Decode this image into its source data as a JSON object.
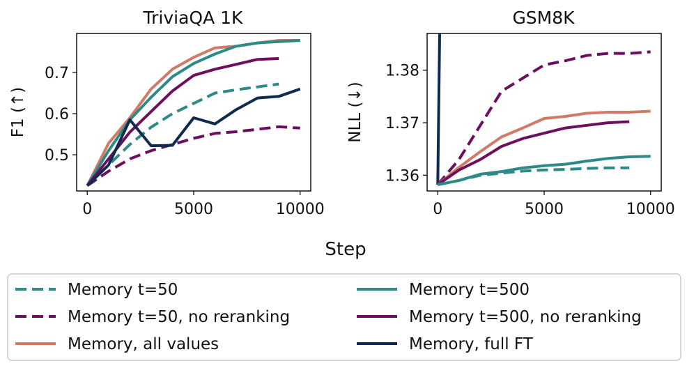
{
  "figure": {
    "xlabel": "Step"
  },
  "legend": {
    "placement": "bottom",
    "columns": 2,
    "entries": [
      {
        "label": "Memory t=50",
        "color": "#2e8a86",
        "dash": "dashed"
      },
      {
        "label": "Memory t=500",
        "color": "#2e8a86",
        "dash": "solid"
      },
      {
        "label": "Memory t=50, no reranking",
        "color": "#6b0f5e",
        "dash": "dashed"
      },
      {
        "label": "Memory t=500, no reranking",
        "color": "#6b0f5e",
        "dash": "solid"
      },
      {
        "label": "Memory, all values",
        "color": "#d17a68",
        "dash": "solid"
      },
      {
        "label": "Memory, full FT",
        "color": "#0e2a4f",
        "dash": "solid"
      }
    ]
  },
  "chart_data": [
    {
      "type": "line",
      "title": "TriviaQA 1K",
      "xlabel": "",
      "ylabel": "F1 (↑)",
      "xlim": [
        -500,
        10500
      ],
      "ylim": [
        0.412,
        0.795
      ],
      "xticks": [
        0,
        5000,
        10000
      ],
      "xtick_labels": [
        "0",
        "5000",
        "10000"
      ],
      "yticks": [
        0.5,
        0.6,
        0.7
      ],
      "ytick_labels": [
        "0.5",
        "0.6",
        "0.7"
      ],
      "grid": false,
      "series": [
        {
          "name": "Memory t=50",
          "color": "#2e8a86",
          "dash": "dashed",
          "x": [
            0,
            1000,
            2000,
            3000,
            4000,
            5000,
            6000,
            7000,
            8000,
            9000
          ],
          "y": [
            0.425,
            0.475,
            0.525,
            0.567,
            0.6,
            0.625,
            0.65,
            0.658,
            0.665,
            0.672
          ]
        },
        {
          "name": "Memory t=50, no reranking",
          "color": "#6b0f5e",
          "dash": "dashed",
          "x": [
            0,
            1000,
            2000,
            3000,
            4000,
            5000,
            6000,
            7000,
            8000,
            9000,
            10000
          ],
          "y": [
            0.425,
            0.46,
            0.49,
            0.51,
            0.525,
            0.54,
            0.552,
            0.556,
            0.562,
            0.568,
            0.565
          ]
        },
        {
          "name": "Memory, all values",
          "color": "#d17a68",
          "dash": "solid",
          "x": [
            0,
            1000,
            2000,
            3000,
            4000,
            5000,
            6000,
            7000,
            8000,
            9000,
            10000
          ],
          "y": [
            0.425,
            0.528,
            0.59,
            0.66,
            0.708,
            0.737,
            0.76,
            0.764,
            0.772,
            0.778,
            0.778
          ]
        },
        {
          "name": "Memory t=500",
          "color": "#2e8a86",
          "dash": "solid",
          "x": [
            0,
            1000,
            2000,
            3000,
            4000,
            5000,
            6000,
            7000,
            8000,
            9000,
            10000
          ],
          "y": [
            0.425,
            0.51,
            0.585,
            0.64,
            0.69,
            0.722,
            0.745,
            0.764,
            0.772,
            0.775,
            0.778
          ]
        },
        {
          "name": "Memory t=500, no reranking",
          "color": "#6b0f5e",
          "dash": "solid",
          "x": [
            0,
            1000,
            2000,
            3000,
            4000,
            5000,
            6000,
            7000,
            8000,
            9000
          ],
          "y": [
            0.425,
            0.49,
            0.555,
            0.605,
            0.655,
            0.693,
            0.708,
            0.72,
            0.732,
            0.734
          ]
        },
        {
          "name": "Memory, full FT",
          "color": "#0e2a4f",
          "dash": "solid",
          "x": [
            0,
            1000,
            2000,
            3000,
            4000,
            5000,
            6000,
            7000,
            8000,
            9000,
            10000
          ],
          "y": [
            0.425,
            0.475,
            0.585,
            0.522,
            0.523,
            0.59,
            0.575,
            0.61,
            0.638,
            0.642,
            0.66
          ]
        }
      ]
    },
    {
      "type": "line",
      "title": "GSM8K",
      "xlabel": "",
      "ylabel": "NLL (↓)",
      "xlim": [
        -500,
        10500
      ],
      "ylim": [
        1.357,
        1.387
      ],
      "xticks": [
        0,
        5000,
        10000
      ],
      "xtick_labels": [
        "0",
        "5000",
        "10000"
      ],
      "yticks": [
        1.36,
        1.37,
        1.38
      ],
      "ytick_labels": [
        "1.36",
        "1.37",
        "1.38"
      ],
      "grid": false,
      "series": [
        {
          "name": "Memory, full FT",
          "color": "#0e2a4f",
          "dash": "solid",
          "x": [
            0,
            100
          ],
          "y": [
            1.3582,
            1.39
          ]
        },
        {
          "name": "Memory t=50, no reranking",
          "color": "#6b0f5e",
          "dash": "dashed",
          "x": [
            0,
            1000,
            2000,
            3000,
            4000,
            5000,
            6000,
            7000,
            8000,
            9000,
            10000
          ],
          "y": [
            1.3582,
            1.363,
            1.3695,
            1.376,
            1.3785,
            1.381,
            1.3818,
            1.3828,
            1.3832,
            1.3832,
            1.3835
          ]
        },
        {
          "name": "Memory, all values",
          "color": "#d17a68",
          "dash": "solid",
          "x": [
            0,
            1000,
            2000,
            3000,
            4000,
            5000,
            6000,
            7000,
            8000,
            9000,
            10000
          ],
          "y": [
            1.3582,
            1.3615,
            1.3645,
            1.3673,
            1.369,
            1.3708,
            1.3712,
            1.3718,
            1.372,
            1.372,
            1.3722
          ]
        },
        {
          "name": "Memory t=500, no reranking",
          "color": "#6b0f5e",
          "dash": "solid",
          "x": [
            0,
            1000,
            2000,
            3000,
            4000,
            5000,
            6000,
            7000,
            8000,
            9000
          ],
          "y": [
            1.3582,
            1.361,
            1.363,
            1.3655,
            1.367,
            1.368,
            1.369,
            1.3695,
            1.37,
            1.3702
          ]
        },
        {
          "name": "Memory t=500",
          "color": "#2e8a86",
          "dash": "solid",
          "x": [
            0,
            1000,
            2000,
            3000,
            4000,
            5000,
            6000,
            7000,
            8000,
            9000,
            10000
          ],
          "y": [
            1.3582,
            1.359,
            1.3602,
            1.3607,
            1.3614,
            1.3618,
            1.3621,
            1.3627,
            1.3632,
            1.3635,
            1.3636
          ]
        },
        {
          "name": "Memory t=50",
          "color": "#2e8a86",
          "dash": "dashed",
          "x": [
            0,
            1000,
            2000,
            3000,
            4000,
            5000,
            6000,
            7000,
            8000,
            9000
          ],
          "y": [
            1.3582,
            1.359,
            1.36,
            1.3604,
            1.3608,
            1.361,
            1.3611,
            1.3613,
            1.3614,
            1.3614
          ]
        }
      ]
    }
  ]
}
